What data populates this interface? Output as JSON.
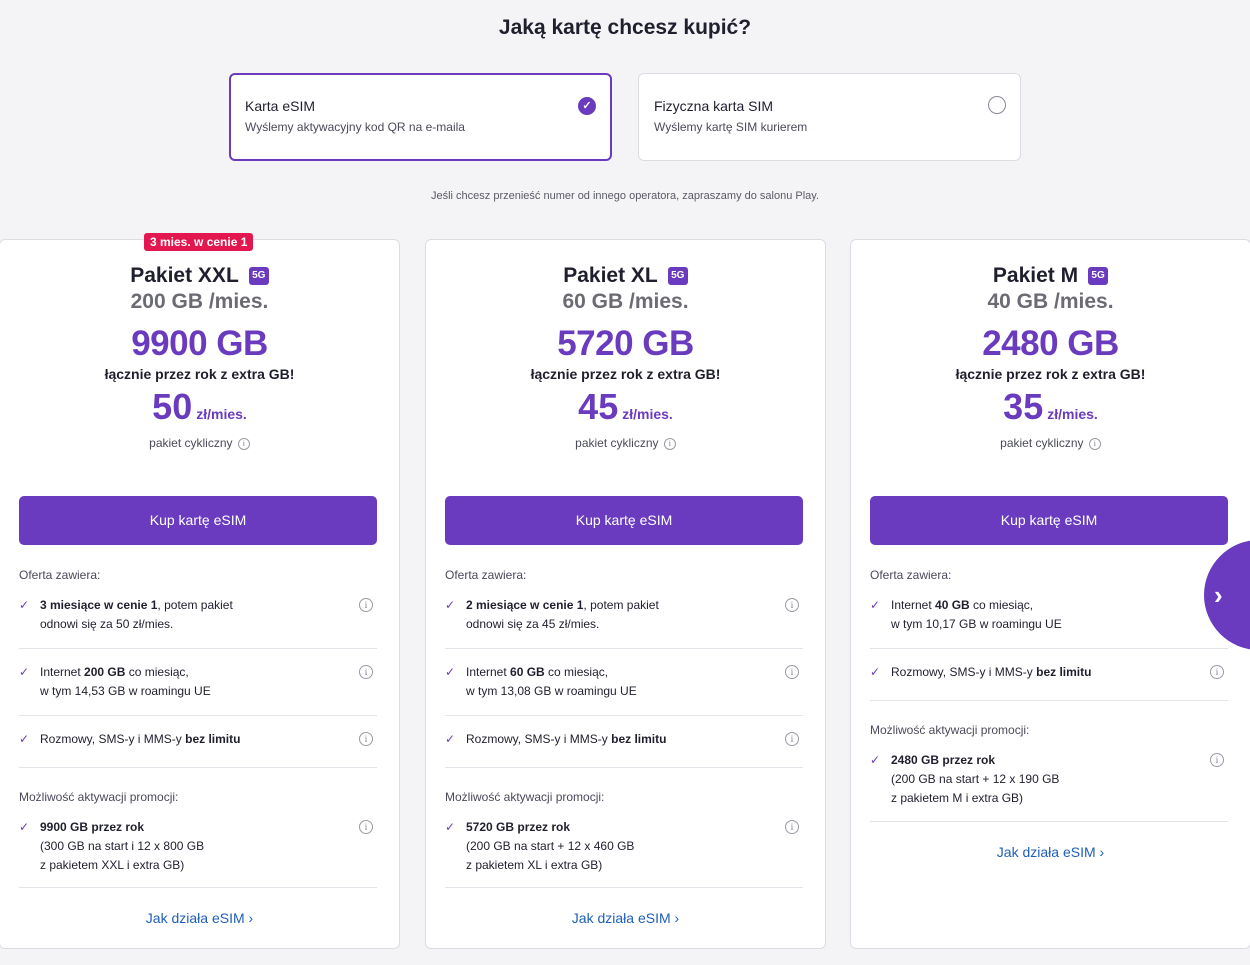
{
  "title": "Jaką kartę chcesz kupić?",
  "sim_options": [
    {
      "title": "Karta eSIM",
      "subtitle": "Wyślemy aktywacyjny kod QR na e-maila",
      "selected": true
    },
    {
      "title": "Fizyczna karta SIM",
      "subtitle": "Wyślemy kartę SIM kurierem",
      "selected": false
    }
  ],
  "note": "Jeśli chcesz przenieść numer od innego operatora, zapraszamy do salonu Play.",
  "badge_5g": "5G",
  "check_icon": "✓",
  "arrow": "›",
  "cards": [
    {
      "badge": "3 mies. w cenie 1",
      "name": "Pakiet XXL",
      "data": "200 GB /mies.",
      "total": "9900 GB",
      "total_sub": "łącznie przez rok z extra GB!",
      "price": "50",
      "price_unit": "zł/mies.",
      "cyclic": "pakiet cykliczny",
      "button": "Kup kartę eSIM",
      "offer_label": "Oferta zawiera:",
      "f1_bold": "3 miesiące w cenie 1",
      "f1_rest": ", potem pakiet",
      "f1_line2": "odnowi się za 50 zł/mies.",
      "f2_pre": "Internet ",
      "f2_bold": "200 GB",
      "f2_post": " co miesiąc,",
      "f2_line2": "w tym 14,53 GB w roamingu UE",
      "f3_pre": "Rozmowy, SMS-y i MMS-y ",
      "f3_bold": "bez limitu",
      "promo_label": "Możliwość aktywacji promocji:",
      "p_bold": "9900 GB przez rok",
      "p_line2": "(300 GB na start i 12 x 800 GB",
      "p_line3": "z pakietem XXL i extra GB)",
      "link": "Jak działa eSIM"
    },
    {
      "name": "Pakiet XL",
      "data": "60 GB /mies.",
      "total": "5720 GB",
      "total_sub": "łącznie przez rok z extra GB!",
      "price": "45",
      "price_unit": "zł/mies.",
      "cyclic": "pakiet cykliczny",
      "button": "Kup kartę eSIM",
      "offer_label": "Oferta zawiera:",
      "f1_bold": "2 miesiące w cenie 1",
      "f1_rest": ", potem pakiet",
      "f1_line2": "odnowi się za 45 zł/mies.",
      "f2_pre": "Internet ",
      "f2_bold": "60 GB",
      "f2_post": " co miesiąc,",
      "f2_line2": "w tym 13,08 GB w roamingu UE",
      "f3_pre": "Rozmowy, SMS-y i MMS-y ",
      "f3_bold": "bez limitu",
      "promo_label": "Możliwość aktywacji promocji:",
      "p_bold": "5720 GB przez rok",
      "p_line2": "(200 GB na start + 12 x 460 GB",
      "p_line3": "z pakietem XL i extra GB)",
      "link": "Jak działa eSIM"
    },
    {
      "name": "Pakiet M",
      "data": "40 GB /mies.",
      "total": "2480 GB",
      "total_sub": "łącznie przez rok z extra GB!",
      "price": "35",
      "price_unit": "zł/mies.",
      "cyclic": "pakiet cykliczny",
      "button": "Kup kartę eSIM",
      "offer_label": "Oferta zawiera:",
      "f1_pre": "Internet ",
      "f1_bold": "40 GB",
      "f1_post": " co miesiąc,",
      "f1_line2": "w tym 10,17 GB w roamingu UE",
      "f2_pre": "Rozmowy, SMS-y i MMS-y ",
      "f2_bold": "bez limitu",
      "promo_label": "Możliwość aktywacji promocji:",
      "p_bold": "2480 GB przez rok",
      "p_line2": "(200 GB na start + 12 x 190 GB",
      "p_line3": "z pakietem M i extra GB)",
      "link": "Jak działa eSIM"
    }
  ]
}
